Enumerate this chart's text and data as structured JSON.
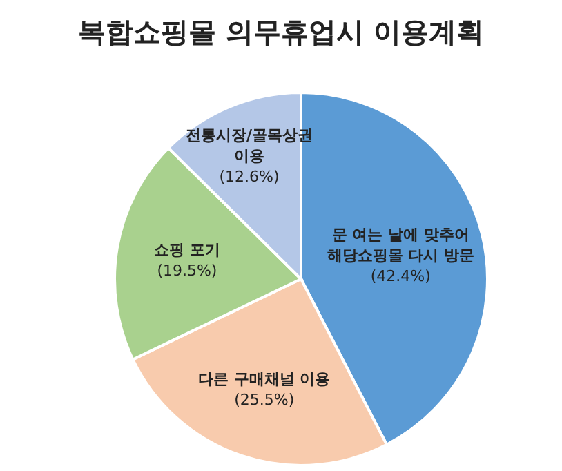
{
  "chart_data": {
    "type": "pie",
    "title": "복합쇼핑몰 의무휴업시 이용계획",
    "categories": [
      "문 여는 날에 맞추어 해당쇼핑몰 다시 방문",
      "다른 구매채널 이용",
      "쇼핑 포기",
      "전통시장/골목상권 이용"
    ],
    "values": [
      42.4,
      25.5,
      19.5,
      12.6
    ],
    "colors": [
      "#5b9bd5",
      "#f8cbad",
      "#a9d18e",
      "#b4c7e7"
    ],
    "value_labels": [
      "(42.4%)",
      "(25.5%)",
      "(19.5%)",
      "(12.6%)"
    ]
  }
}
